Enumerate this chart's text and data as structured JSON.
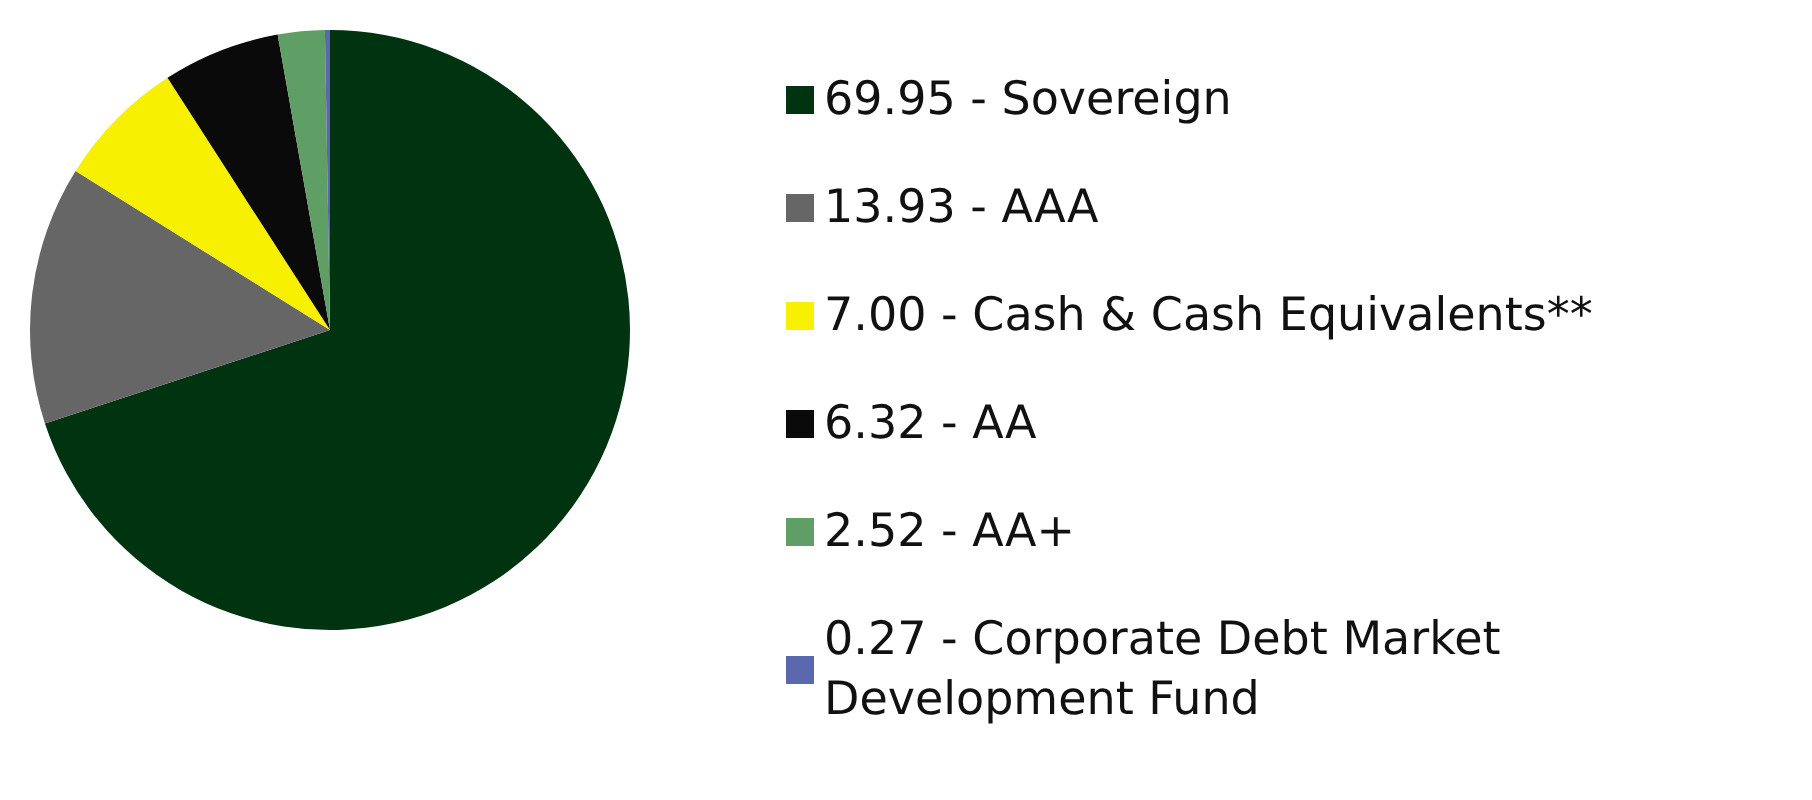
{
  "chart_data": {
    "type": "pie",
    "categories": [
      "Sovereign",
      "AAA",
      "Cash & Cash Equivalents**",
      "AA",
      "AA+",
      "Corporate Debt Market Development Fund"
    ],
    "values": [
      69.95,
      13.93,
      7.0,
      6.32,
      2.52,
      0.27
    ],
    "value_labels": [
      "69.95",
      "13.93",
      "7.00",
      "6.32",
      "2.52",
      "0.27"
    ],
    "colors": [
      "#00330f",
      "#666666",
      "#f7f000",
      "#0a0a0a",
      "#5f9e64",
      "#5b68ae"
    ],
    "legend": "right"
  }
}
